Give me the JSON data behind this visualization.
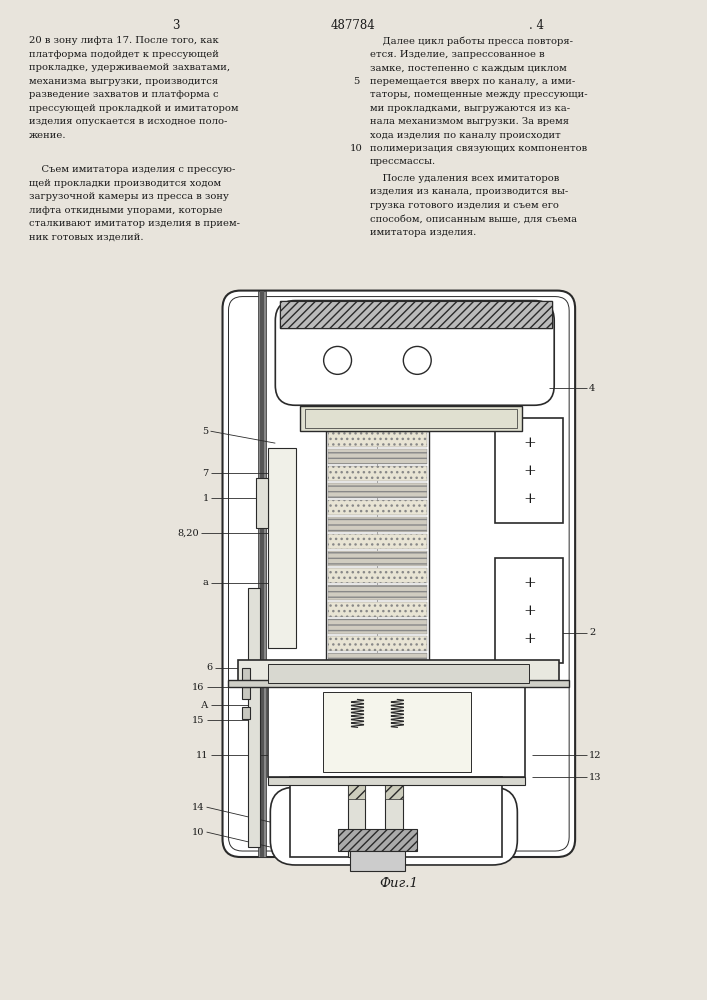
{
  "page_width": 7.07,
  "page_height": 10.0,
  "bg_color": "#e8e4dc",
  "text_color": "#1a1a1a",
  "line_color": "#2a2a2a",
  "header": "3            487784          . 4",
  "fig_caption": "Фиг.1",
  "font_size_body": 7.2,
  "font_size_label": 7.0,
  "left_col_lines": [
    "20 в зону лифта 17. После того, как",
    "платформа подойдет к прессующей",
    "прокладке, удерживаемой захватами,",
    "механизма выгрузки, производится",
    "разведение захватов и платформа с",
    "прессующей прокладкой и имитатором",
    "изделия опускается в исходное поло-",
    "жение."
  ],
  "left_col2_lines": [
    "    Съем имитатора изделия с прессую-",
    "щей прокладки производится ходом",
    "загрузочной камеры из пресса в зону",
    "лифта откидными упорами, которые",
    "сталкивают имитатор изделия в прием-",
    "ник готовых изделий."
  ],
  "right_col_lines": [
    "    Далее цикл работы пресса повторя-",
    "ется. Изделие, запрессованное в",
    "замке, постепенно с каждым циклом",
    "перемещается вверх по каналу, а ими-",
    "таторы, помещенные между прессующи-",
    "ми прокладками, выгружаются из ка-",
    "нала механизмом выгрузки. За время",
    "хода изделия по каналу происходит",
    "полимеризация связующих компонентов",
    "прессмассы."
  ],
  "right_col2_lines": [
    "    После удаления всех имитаторов",
    "изделия из канала, производится вы-",
    "грузка готового изделия и съем его",
    "способом, описанным выше, для съема",
    "имитатора изделия."
  ],
  "line_nums": {
    "4": 3,
    "5": 4,
    "10": 9
  }
}
